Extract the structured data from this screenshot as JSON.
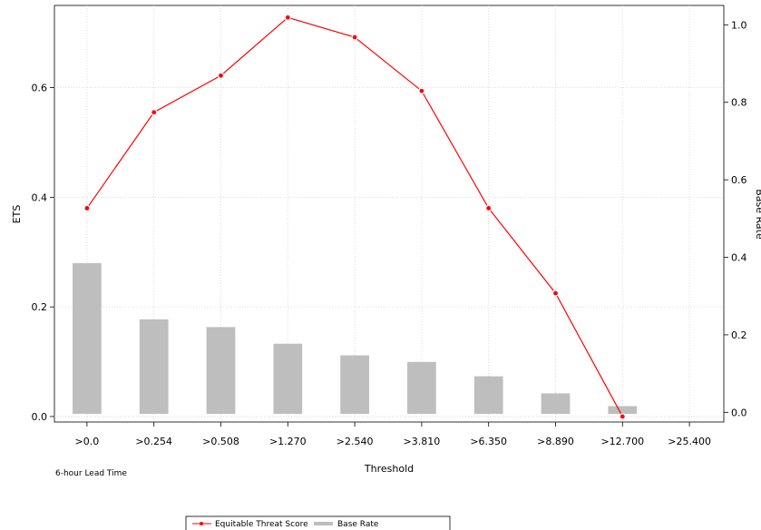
{
  "chart_data": {
    "type": "line",
    "categories": [
      ">0.0",
      ">0.254",
      ">0.508",
      ">1.270",
      ">2.540",
      ">3.810",
      ">6.350",
      ">8.890",
      ">12.700",
      ">25.400"
    ],
    "xlabel": "Threshold",
    "ylabel": "ETS",
    "y2label": "Base Rate",
    "ylim": [
      -0.01,
      0.75
    ],
    "y2lim": [
      -0.025,
      1.05
    ],
    "yticks": [
      "0.0",
      "0.2",
      "0.4",
      "0.6"
    ],
    "y2ticks": [
      "0.0",
      "0.2",
      "0.4",
      "0.6",
      "0.8",
      "1.0"
    ],
    "note": "6-hour Lead Time",
    "grid": true,
    "legend_position": "bottom",
    "series": [
      {
        "name": "Equitable Threat Score",
        "kind": "line",
        "axis": "left",
        "color": "#ff0000",
        "values": [
          0.38,
          0.555,
          0.622,
          0.728,
          0.692,
          0.594,
          0.38,
          0.225,
          0.0,
          null
        ]
      },
      {
        "name": "Base Rate",
        "kind": "bar",
        "axis": "right",
        "color": "#bebebe",
        "values": [
          0.385,
          0.24,
          0.22,
          0.177,
          0.147,
          0.13,
          0.093,
          0.049,
          0.016,
          null
        ]
      }
    ]
  }
}
